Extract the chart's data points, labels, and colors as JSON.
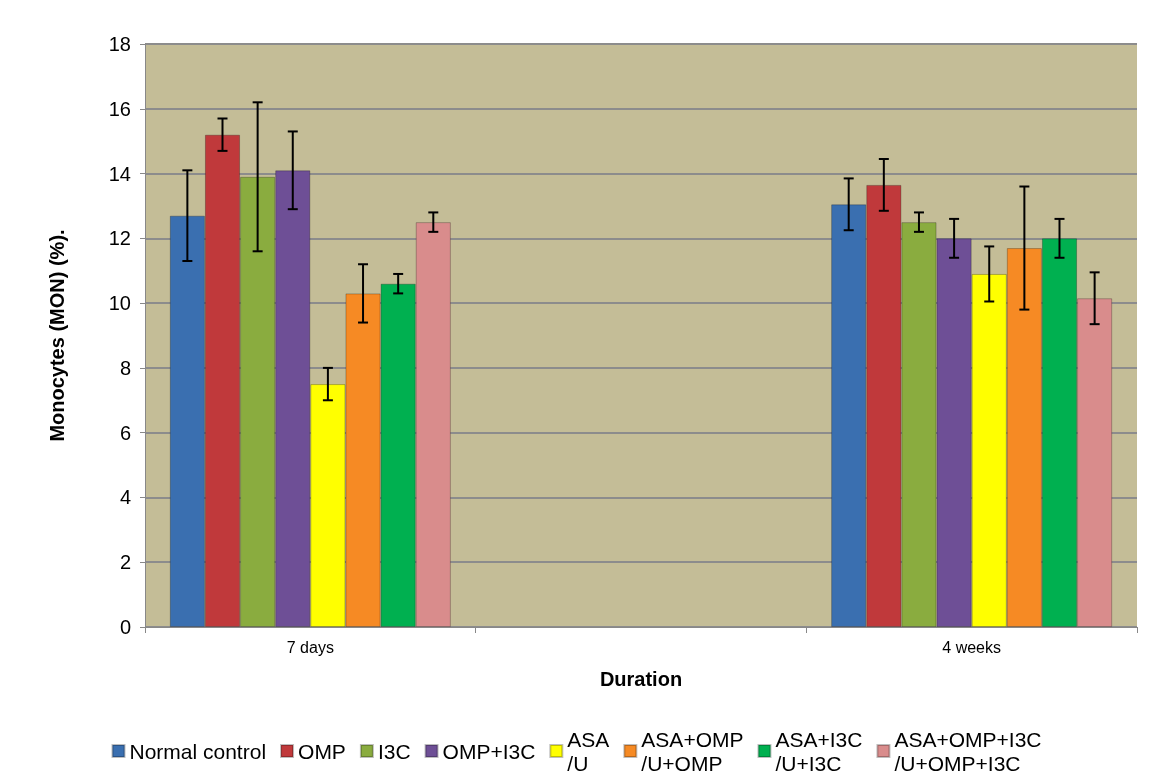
{
  "chart_data": {
    "type": "bar",
    "xlabel": "Duration",
    "ylabel": "Monocytes (MON) (%).",
    "categories": [
      "7 days",
      null,
      "4 weeks"
    ],
    "ylim": [
      0,
      18
    ],
    "yticks": [
      0,
      2,
      4,
      6,
      8,
      10,
      12,
      14,
      16,
      18
    ],
    "grid": "y",
    "legend": "bottom",
    "series": [
      {
        "name": "Normal control",
        "color": "#3a6fb0",
        "values": [
          12.7,
          null,
          13.05
        ],
        "errors": [
          1.4,
          null,
          0.8
        ]
      },
      {
        "name": "OMP",
        "color": "#c0393b",
        "values": [
          15.2,
          null,
          13.65
        ],
        "errors": [
          0.5,
          null,
          0.8
        ]
      },
      {
        "name": "I3C",
        "color": "#8aac3f",
        "values": [
          13.9,
          null,
          12.5
        ],
        "errors": [
          2.3,
          null,
          0.3
        ]
      },
      {
        "name": "OMP+I3C",
        "color": "#6e4f96",
        "values": [
          14.1,
          null,
          12.0
        ],
        "errors": [
          1.2,
          null,
          0.6
        ]
      },
      {
        "name": "ASA\n/U",
        "color": "#ffff00",
        "values": [
          7.5,
          null,
          10.9
        ],
        "errors": [
          0.5,
          null,
          0.85
        ]
      },
      {
        "name": "ASA+OMP\n/U+OMP",
        "color": "#f68a24",
        "values": [
          10.3,
          null,
          11.7
        ],
        "errors": [
          0.9,
          null,
          1.9
        ]
      },
      {
        "name": "ASA+I3C\n/U+I3C",
        "color": "#00b050",
        "values": [
          10.6,
          null,
          12.0
        ],
        "errors": [
          0.3,
          null,
          0.6
        ]
      },
      {
        "name": "ASA+OMP+I3C\n/U+OMP+I3C",
        "color": "#d98c8c",
        "values": [
          12.5,
          null,
          10.15
        ],
        "errors": [
          0.3,
          null,
          0.8
        ]
      }
    ]
  }
}
